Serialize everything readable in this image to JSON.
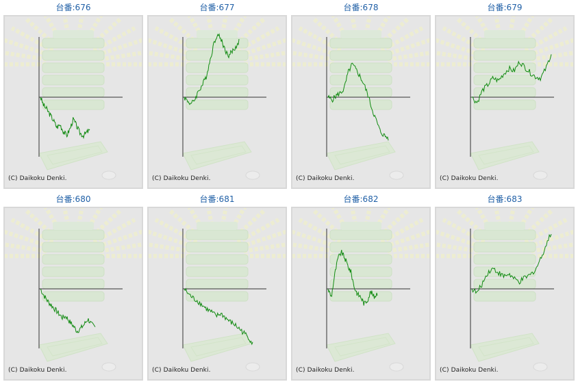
{
  "copyright": "(C) Daikoku Denki.",
  "colors": {
    "title": "#1f5fa6",
    "line": "#118a11",
    "axis": "#333333",
    "panel_bg": "#e6e6e6",
    "panel_border": "#d8d8d8"
  },
  "units": [
    {
      "label": "台番:676",
      "trend": [
        0,
        -12,
        -18,
        -26,
        -34,
        -44,
        -40,
        -50,
        -56,
        -46,
        -32,
        -42,
        -52,
        -56,
        -52,
        -48
      ]
    },
    {
      "label": "台番:677",
      "trend": [
        0,
        -6,
        -10,
        -2,
        10,
        18,
        30,
        52,
        76,
        92,
        86,
        72,
        60,
        66,
        72,
        82
      ]
    },
    {
      "label": "台番:678",
      "trend": [
        0,
        -4,
        2,
        6,
        12,
        36,
        48,
        40,
        30,
        18,
        2,
        -18,
        -34,
        -50,
        -56,
        -60
      ]
    },
    {
      "label": "台番:679",
      "trend": [
        0,
        -8,
        10,
        18,
        28,
        24,
        34,
        42,
        38,
        52,
        44,
        36,
        30,
        28,
        42,
        64
      ]
    },
    {
      "label": "台番:680",
      "trend": [
        0,
        -10,
        -18,
        -24,
        -30,
        -36,
        -42,
        -40,
        -48,
        -54,
        -62,
        -58,
        -52,
        -44,
        -52,
        -56
      ]
    },
    {
      "label": "台番:681",
      "trend": [
        0,
        -8,
        -14,
        -18,
        -24,
        -30,
        -34,
        -40,
        -36,
        -42,
        -48,
        -52,
        -58,
        -64,
        -70,
        -80
      ]
    },
    {
      "label": "台番:682",
      "trend": [
        0,
        -12,
        20,
        44,
        54,
        46,
        34,
        24,
        2,
        -8,
        -12,
        -22,
        -16,
        -4,
        -12,
        -6
      ]
    },
    {
      "label": "台番:683",
      "trend": [
        0,
        -6,
        8,
        24,
        30,
        24,
        18,
        22,
        14,
        10,
        16,
        20,
        28,
        44,
        64,
        82
      ]
    }
  ]
}
